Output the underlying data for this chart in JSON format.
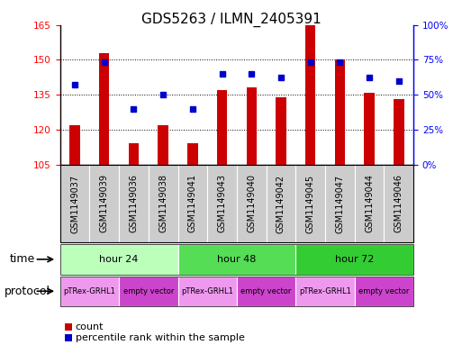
{
  "title": "GDS5263 / ILMN_2405391",
  "samples": [
    "GSM1149037",
    "GSM1149039",
    "GSM1149036",
    "GSM1149038",
    "GSM1149041",
    "GSM1149043",
    "GSM1149040",
    "GSM1149042",
    "GSM1149045",
    "GSM1149047",
    "GSM1149044",
    "GSM1149046"
  ],
  "count_values": [
    122,
    153,
    114,
    122,
    114,
    137,
    138,
    134,
    165,
    150,
    136,
    133
  ],
  "percentile_values": [
    57,
    73,
    40,
    50,
    40,
    65,
    65,
    62,
    73,
    73,
    62,
    60
  ],
  "ylim_left": [
    105,
    165
  ],
  "ylim_right": [
    0,
    100
  ],
  "yticks_left": [
    105,
    120,
    135,
    150,
    165
  ],
  "yticks_right": [
    0,
    25,
    50,
    75,
    100
  ],
  "bar_color": "#cc0000",
  "dot_color": "#0000cc",
  "bar_width": 0.35,
  "time_groups": [
    {
      "label": "hour 24",
      "start": 0,
      "end": 4,
      "color": "#bbffbb"
    },
    {
      "label": "hour 48",
      "start": 4,
      "end": 8,
      "color": "#55dd55"
    },
    {
      "label": "hour 72",
      "start": 8,
      "end": 12,
      "color": "#33cc33"
    }
  ],
  "protocol_groups": [
    {
      "label": "pTRex-GRHL1",
      "start": 0,
      "end": 2,
      "color": "#ee99ee"
    },
    {
      "label": "empty vector",
      "start": 2,
      "end": 4,
      "color": "#cc44cc"
    },
    {
      "label": "pTRex-GRHL1",
      "start": 4,
      "end": 6,
      "color": "#ee99ee"
    },
    {
      "label": "empty vector",
      "start": 6,
      "end": 8,
      "color": "#cc44cc"
    },
    {
      "label": "pTRex-GRHL1",
      "start": 8,
      "end": 10,
      "color": "#ee99ee"
    },
    {
      "label": "empty vector",
      "start": 10,
      "end": 12,
      "color": "#cc44cc"
    }
  ],
  "time_label": "time",
  "protocol_label": "protocol",
  "legend_count_label": "count",
  "legend_pct_label": "percentile rank within the sample",
  "bg_color": "#ffffff",
  "sample_bg_color": "#cccccc",
  "title_fontsize": 11,
  "tick_fontsize": 7.5,
  "sample_fontsize": 7,
  "row_fontsize": 8,
  "legend_fontsize": 8
}
